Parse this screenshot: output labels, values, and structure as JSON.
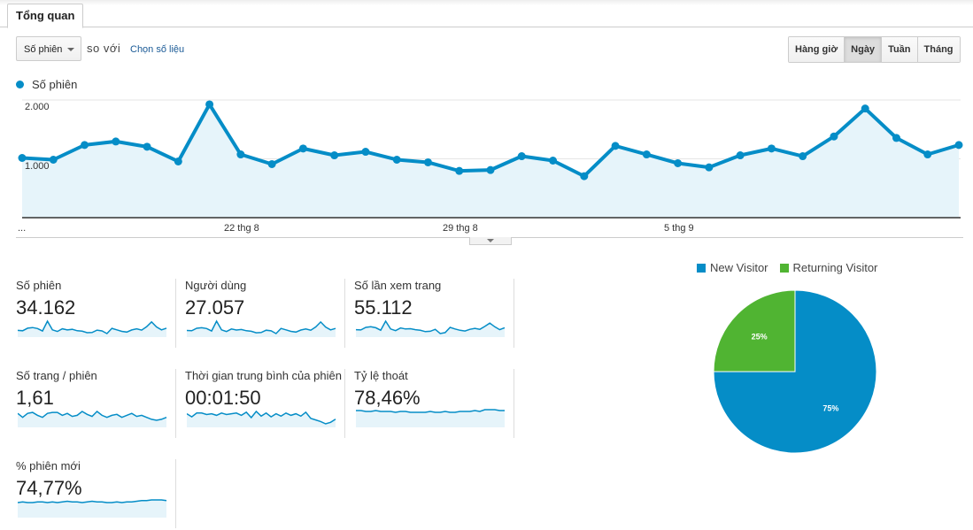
{
  "tab": {
    "label": "Tổng quan"
  },
  "controls": {
    "metric_select": "Số phiên",
    "compare_text": "so với",
    "choose_metric_link": "Chọn số liệu"
  },
  "granularity": {
    "buttons": [
      "Hàng giờ",
      "Ngày",
      "Tuần",
      "Tháng"
    ],
    "active": "Ngày"
  },
  "colors": {
    "series": "#058dc7",
    "fill": "#e6f4fa",
    "new_visitor": "#058dc7",
    "returning_visitor": "#50b432"
  },
  "chart_data": [
    {
      "type": "line",
      "legend": "Số phiên",
      "y_ticks": [
        "2.000",
        "1.000"
      ],
      "y_tick_values": [
        2000,
        1000
      ],
      "ylim": [
        0,
        2000
      ],
      "x_tick_labels": [
        "...",
        "22 thg 8",
        "29 thg 8",
        "5 thg 9"
      ],
      "x_tick_indices": [
        0,
        7,
        14,
        21
      ],
      "values": [
        1015,
        985,
        1235,
        1295,
        1205,
        955,
        1925,
        1075,
        910,
        1175,
        1060,
        1120,
        985,
        940,
        795,
        810,
        1045,
        970,
        705,
        1220,
        1075,
        925,
        855,
        1060,
        1175,
        1045,
        1380,
        1855,
        1355,
        1075,
        1235
      ],
      "grid": true,
      "area": true
    },
    {
      "type": "pie",
      "legend": [
        "New Visitor",
        "Returning Visitor"
      ],
      "values": [
        75,
        25
      ],
      "labels": [
        "75%",
        "25%"
      ],
      "legend_position": "top"
    }
  ],
  "metrics": [
    {
      "label": "Số phiên",
      "value": "34.162",
      "spark": [
        1015,
        985,
        1235,
        1295,
        1205,
        955,
        1925,
        1075,
        910,
        1175,
        1060,
        1120,
        985,
        940,
        795,
        810,
        1045,
        970,
        705,
        1220,
        1075,
        925,
        855,
        1060,
        1175,
        1045,
        1380,
        1855,
        1355,
        1075,
        1235
      ]
    },
    {
      "label": "Người dùng",
      "value": "27.057",
      "spark": [
        800,
        780,
        960,
        1000,
        940,
        760,
        1480,
        840,
        720,
        910,
        830,
        870,
        780,
        740,
        630,
        650,
        820,
        770,
        570,
        950,
        840,
        730,
        680,
        830,
        910,
        820,
        1060,
        1420,
        1050,
        840,
        950
      ]
    },
    {
      "label": "Số lần xem trang",
      "value": "55.112",
      "spark": [
        1600,
        1550,
        1950,
        2050,
        1900,
        1520,
        2900,
        1700,
        1450,
        1850,
        1700,
        1750,
        1600,
        1500,
        1300,
        1350,
        1650,
        1000,
        1150,
        1950,
        1700,
        1500,
        1400,
        1650,
        1800,
        1650,
        2100,
        2600,
        2050,
        1600,
        1900
      ]
    },
    {
      "label": "Số trang / phiên",
      "value": "1,61",
      "spark": [
        1.62,
        1.58,
        1.62,
        1.63,
        1.6,
        1.58,
        1.62,
        1.63,
        1.63,
        1.6,
        1.62,
        1.59,
        1.6,
        1.64,
        1.61,
        1.59,
        1.64,
        1.6,
        1.58,
        1.6,
        1.61,
        1.58,
        1.6,
        1.62,
        1.59,
        1.6,
        1.58,
        1.56,
        1.55,
        1.56,
        1.58
      ]
    },
    {
      "label": "Thời gian trung bình của phiên",
      "value": "00:01:50",
      "spark": [
        110,
        102,
        112,
        112,
        108,
        110,
        106,
        112,
        108,
        110,
        112,
        106,
        114,
        100,
        116,
        104,
        112,
        102,
        110,
        104,
        112,
        106,
        110,
        104,
        114,
        98,
        94,
        90,
        84,
        88,
        96
      ]
    },
    {
      "label": "Tỷ lệ thoát",
      "value": "78,46%",
      "spark": [
        78.5,
        78.5,
        78.4,
        78.4,
        78.5,
        78.4,
        78.4,
        78.4,
        78.3,
        78.4,
        78.4,
        78.3,
        78.3,
        78.3,
        78.3,
        78.4,
        78.3,
        78.3,
        78.4,
        78.3,
        78.3,
        78.4,
        78.4,
        78.4,
        78.5,
        78.4,
        78.6,
        78.6,
        78.6,
        78.5,
        78.5
      ]
    },
    {
      "label": "% phiên mới",
      "value": "74,77%",
      "spark": [
        74.6,
        74.7,
        74.6,
        74.6,
        74.7,
        74.7,
        74.6,
        74.7,
        74.6,
        74.7,
        74.8,
        74.7,
        74.7,
        74.6,
        74.7,
        74.8,
        74.7,
        74.7,
        74.6,
        74.6,
        74.7,
        74.6,
        74.7,
        74.7,
        74.8,
        74.9,
        74.9,
        75,
        75,
        75,
        74.9
      ]
    }
  ]
}
